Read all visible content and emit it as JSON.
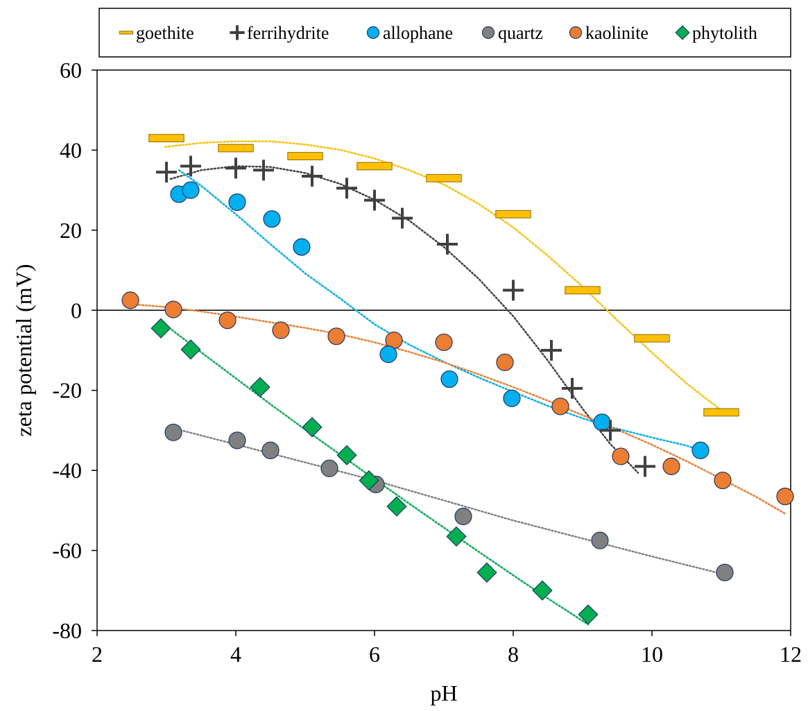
{
  "chart_data": {
    "type": "scatter",
    "title": "",
    "xlabel": "pH",
    "ylabel": "zeta potential (mV)",
    "xlim": [
      2,
      12
    ],
    "ylim": [
      -80,
      60
    ],
    "xticks": [
      2,
      4,
      6,
      8,
      10,
      12
    ],
    "yticks": [
      -80,
      -60,
      -40,
      -20,
      0,
      20,
      40,
      60
    ],
    "grid": false,
    "legend": "top",
    "zero_line": true,
    "series": [
      {
        "name": "goethite",
        "marker": "dash",
        "color": "#FFC000",
        "edge": "#8B6A00",
        "points": [
          [
            3.0,
            43
          ],
          [
            4.0,
            40.5
          ],
          [
            5.0,
            38.5
          ],
          [
            6.0,
            36
          ],
          [
            7.0,
            33
          ],
          [
            8.0,
            24
          ],
          [
            9.0,
            5
          ],
          [
            10.0,
            -7
          ],
          [
            11.0,
            -25.5
          ]
        ],
        "trend": [
          [
            2.98,
            40.8
          ],
          [
            3.5,
            41.8
          ],
          [
            4.0,
            42.2
          ],
          [
            4.5,
            42.2
          ],
          [
            5.0,
            41.4
          ],
          [
            5.5,
            40.1
          ],
          [
            6.0,
            37.9
          ],
          [
            6.5,
            35.0
          ],
          [
            7.0,
            31.4
          ],
          [
            7.5,
            26.6
          ],
          [
            8.0,
            20.7
          ],
          [
            8.5,
            13.6
          ],
          [
            9.0,
            5.9
          ],
          [
            9.5,
            -2.5
          ],
          [
            10.0,
            -10.6
          ],
          [
            10.5,
            -18.3
          ],
          [
            11.0,
            -25.0
          ],
          [
            11.08,
            -26.0
          ]
        ]
      },
      {
        "name": "ferrihydrite",
        "marker": "plus",
        "color": "#404040",
        "edge": "#404040",
        "points": [
          [
            3.0,
            34.5
          ],
          [
            3.35,
            36
          ],
          [
            4.0,
            35.5
          ],
          [
            4.4,
            35
          ],
          [
            5.1,
            33.5
          ],
          [
            5.6,
            30.5
          ],
          [
            6.0,
            27.5
          ],
          [
            6.4,
            23
          ],
          [
            7.05,
            16.5
          ],
          [
            8.0,
            5
          ],
          [
            8.55,
            -10
          ],
          [
            8.85,
            -19.5
          ],
          [
            9.4,
            -30
          ],
          [
            9.9,
            -39
          ]
        ],
        "trend": [
          [
            3.06,
            32.8
          ],
          [
            3.5,
            35.0
          ],
          [
            4.0,
            36.0
          ],
          [
            4.5,
            35.8
          ],
          [
            5.0,
            34.3
          ],
          [
            5.5,
            31.6
          ],
          [
            6.0,
            27.6
          ],
          [
            6.5,
            22.4
          ],
          [
            7.0,
            15.8
          ],
          [
            7.5,
            7.9
          ],
          [
            8.0,
            -1.5
          ],
          [
            8.5,
            -12.6
          ],
          [
            9.0,
            -24.6
          ],
          [
            9.4,
            -33.4
          ],
          [
            9.8,
            -40.6
          ]
        ]
      },
      {
        "name": "allophane",
        "marker": "circle",
        "color": "#00B0F0",
        "edge": "#1F3864",
        "points": [
          [
            3.18,
            29
          ],
          [
            3.35,
            30
          ],
          [
            4.02,
            27
          ],
          [
            4.52,
            22.8
          ],
          [
            4.95,
            15.8
          ],
          [
            6.2,
            -11
          ],
          [
            7.08,
            -17.2
          ],
          [
            7.98,
            -22
          ],
          [
            9.28,
            -28
          ],
          [
            10.7,
            -35
          ]
        ],
        "trend": [
          [
            3.18,
            35.0
          ],
          [
            3.5,
            31.1
          ],
          [
            4.0,
            24.0
          ],
          [
            4.5,
            16.5
          ],
          [
            5.0,
            9.2
          ],
          [
            5.5,
            3.0
          ],
          [
            6.0,
            -3.5
          ],
          [
            6.5,
            -8.6
          ],
          [
            7.0,
            -12.9
          ],
          [
            7.5,
            -16.8
          ],
          [
            8.0,
            -20.4
          ],
          [
            8.5,
            -23.9
          ],
          [
            9.0,
            -27.0
          ],
          [
            9.5,
            -29.6
          ],
          [
            10.0,
            -31.8
          ],
          [
            10.5,
            -33.8
          ],
          [
            10.72,
            -35.2
          ]
        ]
      },
      {
        "name": "quartz",
        "marker": "circle",
        "color": "#808080",
        "edge": "#1F3864",
        "points": [
          [
            3.1,
            -30.5
          ],
          [
            4.02,
            -32.5
          ],
          [
            4.5,
            -35
          ],
          [
            5.35,
            -39.5
          ],
          [
            6.02,
            -43.5
          ],
          [
            7.28,
            -51.5
          ],
          [
            9.25,
            -57.5
          ],
          [
            11.05,
            -65.5
          ]
        ],
        "trend": [
          [
            3.1,
            -29.5
          ],
          [
            4.0,
            -33.5
          ],
          [
            5.0,
            -38.0
          ],
          [
            6.0,
            -42.5
          ],
          [
            7.0,
            -47.5
          ],
          [
            8.0,
            -52.5
          ],
          [
            9.0,
            -57.0
          ],
          [
            10.0,
            -61.5
          ],
          [
            11.05,
            -66.0
          ]
        ]
      },
      {
        "name": "kaolinite",
        "marker": "circle",
        "color": "#ED7D31",
        "edge": "#1F3864",
        "points": [
          [
            2.48,
            2.5
          ],
          [
            3.1,
            0.2
          ],
          [
            3.88,
            -2.5
          ],
          [
            4.65,
            -5
          ],
          [
            5.45,
            -6.5
          ],
          [
            6.28,
            -7.5
          ],
          [
            7.0,
            -8
          ],
          [
            7.88,
            -13
          ],
          [
            8.68,
            -24
          ],
          [
            9.55,
            -36.5
          ],
          [
            10.28,
            -39
          ],
          [
            11.02,
            -42.5
          ],
          [
            11.92,
            -46.5
          ]
        ],
        "trend": [
          [
            2.5,
            1.5
          ],
          [
            3.0,
            0.8
          ],
          [
            3.5,
            -0.3
          ],
          [
            4.0,
            -1.6
          ],
          [
            4.5,
            -3.0
          ],
          [
            5.0,
            -4.4
          ],
          [
            5.5,
            -6.0
          ],
          [
            6.0,
            -8.0
          ],
          [
            6.5,
            -10.4
          ],
          [
            7.0,
            -13.0
          ],
          [
            7.5,
            -16.0
          ],
          [
            8.0,
            -19.2
          ],
          [
            8.5,
            -22.6
          ],
          [
            9.0,
            -26.2
          ],
          [
            9.5,
            -29.8
          ],
          [
            10.0,
            -33.6
          ],
          [
            10.5,
            -37.7
          ],
          [
            11.0,
            -42.1
          ],
          [
            11.5,
            -46.6
          ],
          [
            11.92,
            -50.8
          ]
        ]
      },
      {
        "name": "phytolith",
        "marker": "diamond",
        "color": "#00B050",
        "edge": "#1F3864",
        "points": [
          [
            2.92,
            -4.5
          ],
          [
            3.35,
            -9.8
          ],
          [
            4.35,
            -19.2
          ],
          [
            5.1,
            -29.2
          ],
          [
            5.6,
            -36.2
          ],
          [
            5.92,
            -42.5
          ],
          [
            6.32,
            -49
          ],
          [
            7.18,
            -56.5
          ],
          [
            7.62,
            -65.5
          ],
          [
            8.42,
            -70
          ],
          [
            9.08,
            -76
          ]
        ],
        "trend": [
          [
            2.92,
            -2.8
          ],
          [
            3.5,
            -10.5
          ],
          [
            4.0,
            -17.0
          ],
          [
            4.5,
            -23.5
          ],
          [
            5.0,
            -29.8
          ],
          [
            5.5,
            -36.0
          ],
          [
            6.0,
            -42.2
          ],
          [
            6.5,
            -48.3
          ],
          [
            7.0,
            -54.3
          ],
          [
            7.5,
            -60.3
          ],
          [
            8.0,
            -66.2
          ],
          [
            8.5,
            -72.0
          ],
          [
            9.08,
            -78.5
          ]
        ]
      }
    ]
  }
}
